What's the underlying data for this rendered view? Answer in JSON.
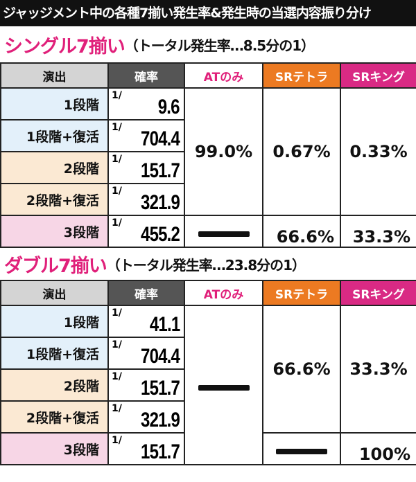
{
  "title": "ジャッジメント中の各種7揃い発生率&発生時の当選内容振り分け",
  "sections": [
    {
      "name": "シングル7揃い",
      "note": "（トータル発生率…8.5分の1）",
      "header": [
        "演出",
        "確率",
        "ATのみ",
        "SRテトラ",
        "SRキング"
      ],
      "rows": [
        {
          "label": "1段階",
          "prob_prefix": "1/",
          "prob": "9.6"
        },
        {
          "label": "1段階+復活",
          "prob_prefix": "1/",
          "prob": "704.4"
        },
        {
          "label": "2段階",
          "prob_prefix": "1/",
          "prob": "151.7"
        },
        {
          "label": "2段階+復活",
          "prob_prefix": "1/",
          "prob": "321.9"
        },
        {
          "label": "3段階",
          "prob_prefix": "1/",
          "prob": "455.2"
        }
      ],
      "at": [
        "99.0%"
      ],
      "tetra": [
        "0.67%",
        "66.6%"
      ],
      "king": [
        "0.33%",
        "33.3%"
      ]
    },
    {
      "name": "ダブル7揃い",
      "note": "（トータル発生率…23.8分の1）",
      "header": [
        "演出",
        "確率",
        "ATのみ",
        "SRテトラ",
        "SRキング"
      ],
      "rows": [
        {
          "label": "1段階",
          "prob_prefix": "1/",
          "prob": "41.1"
        },
        {
          "label": "1段階+復活",
          "prob_prefix": "1/",
          "prob": "704.4"
        },
        {
          "label": "2段階",
          "prob_prefix": "1/",
          "prob": "151.7"
        },
        {
          "label": "2段階+復活",
          "prob_prefix": "1/",
          "prob": "321.9"
        },
        {
          "label": "3段階",
          "prob_prefix": "1/",
          "prob": "151.7"
        }
      ],
      "tetra": [
        "66.6%"
      ],
      "king": [
        "33.3%",
        "100%"
      ]
    }
  ]
}
